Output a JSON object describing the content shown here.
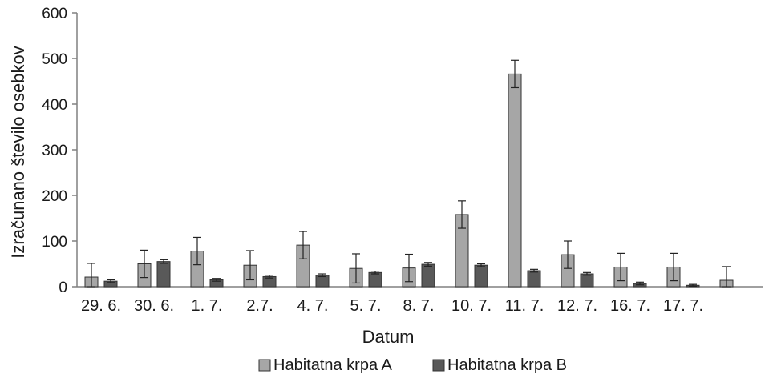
{
  "chart_data": {
    "type": "bar",
    "xlabel": "Datum",
    "ylabel": "Izračunano število osebkov",
    "ylim": [
      0,
      600
    ],
    "yticks": [
      0,
      100,
      200,
      300,
      400,
      500,
      600
    ],
    "grid": false,
    "legend_position": "bottom",
    "categories": [
      "29. 6.",
      "30. 6.",
      "1. 7.",
      "2.7.",
      "4. 7.",
      "5. 7.",
      "8. 7.",
      "10. 7.",
      "11. 7.",
      "12. 7.",
      "16. 7.",
      "17. 7.",
      ""
    ],
    "series": [
      {
        "name": "Habitatna krpa A",
        "color": "#a6a6a6",
        "values": [
          21,
          50,
          78,
          47,
          91,
          40,
          41,
          158,
          466,
          70,
          43,
          43,
          14
        ],
        "errors": [
          30,
          30,
          30,
          32,
          30,
          32,
          30,
          30,
          30,
          30,
          30,
          30,
          30
        ]
      },
      {
        "name": "Habitatna krpa B",
        "color": "#595959",
        "values": [
          12,
          55,
          15,
          22,
          25,
          31,
          49,
          47,
          35,
          28,
          7,
          3,
          null
        ],
        "errors": [
          3,
          4,
          3,
          3,
          3,
          3,
          4,
          3,
          3,
          3,
          3,
          2,
          null
        ]
      }
    ]
  }
}
